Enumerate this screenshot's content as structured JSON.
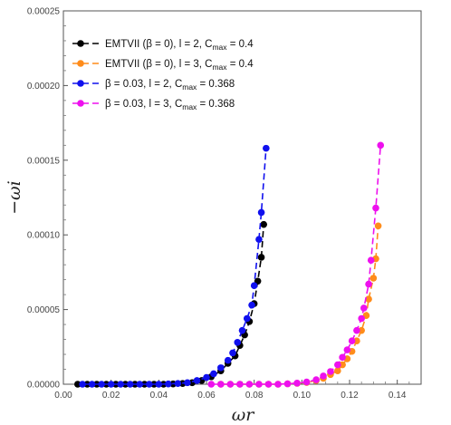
{
  "chart_data": {
    "type": "line",
    "xlabel": "ωr",
    "ylabel": "−ωi",
    "xlim": [
      0.0,
      0.15
    ],
    "ylim": [
      0.0,
      0.00025
    ],
    "x_ticks": [
      "0.00",
      "0.02",
      "0.04",
      "0.06",
      "0.08",
      "0.10",
      "0.12",
      "0.14"
    ],
    "y_ticks": [
      "0.00000",
      "0.00005",
      "0.00010",
      "0.00015",
      "0.00020",
      "0.00025"
    ],
    "grid": false,
    "legend_placement": "top-left",
    "series": [
      {
        "name": "EMTVII (β = 0), l = 2, Cmax = 0.4",
        "legend_text": {
          "main": "EMTVII (β = 0), l = 2, C",
          "sub": "max",
          "tail": " = 0.4"
        },
        "color": "#000000",
        "x": [
          0.006,
          0.01,
          0.014,
          0.018,
          0.022,
          0.026,
          0.03,
          0.034,
          0.038,
          0.042,
          0.046,
          0.05,
          0.054,
          0.058,
          0.062,
          0.066,
          0.069,
          0.072,
          0.074,
          0.076,
          0.078,
          0.08,
          0.0815,
          0.083,
          0.084
        ],
        "y": [
          0.0,
          0.0,
          0.0,
          0.0,
          0.0,
          0.0,
          0.0,
          0.0,
          0.0,
          0.0,
          2e-07,
          5e-07,
          1e-06,
          2.5e-06,
          5e-06,
          9e-06,
          1.4e-05,
          1.9e-05,
          2.6e-05,
          3.3e-05,
          4.2e-05,
          5.4e-05,
          6.9e-05,
          8.5e-05,
          0.000107
        ]
      },
      {
        "name": "EMTVII (β = 0), l = 3, Cmax = 0.4",
        "legend_text": {
          "main": "EMTVII (β = 0), l = 3, C",
          "sub": "max",
          "tail": " = 0.4"
        },
        "color": "#ff8c1a",
        "x": [
          0.066,
          0.07,
          0.074,
          0.078,
          0.082,
          0.086,
          0.09,
          0.094,
          0.098,
          0.102,
          0.106,
          0.109,
          0.112,
          0.115,
          0.117,
          0.119,
          0.121,
          0.123,
          0.125,
          0.127,
          0.128,
          0.13,
          0.131,
          0.132
        ],
        "y": [
          0.0,
          0.0,
          0.0,
          0.0,
          0.0,
          0.0,
          0.0,
          3e-07,
          6e-07,
          1.2e-06,
          2.5e-06,
          4e-06,
          6.5e-06,
          9e-06,
          1.3e-05,
          1.7e-05,
          2.2e-05,
          2.9e-05,
          3.6e-05,
          4.6e-05,
          5.7e-05,
          7.1e-05,
          8.4e-05,
          0.000106
        ]
      },
      {
        "name": "β = 0.03, l = 2, Cmax = 0.368",
        "legend_text": {
          "main": "β = 0.03, l = 2, C",
          "sub": "max",
          "tail": " = 0.368"
        },
        "color": "#1010ee",
        "x": [
          0.008,
          0.012,
          0.016,
          0.02,
          0.024,
          0.028,
          0.032,
          0.036,
          0.04,
          0.044,
          0.048,
          0.052,
          0.056,
          0.06,
          0.063,
          0.066,
          0.069,
          0.071,
          0.073,
          0.075,
          0.077,
          0.079,
          0.08,
          0.082,
          0.083,
          0.085
        ],
        "y": [
          0.0,
          0.0,
          0.0,
          0.0,
          0.0,
          0.0,
          0.0,
          0.0,
          0.0,
          2e-07,
          5e-07,
          1e-06,
          2.5e-06,
          4.5e-06,
          7e-06,
          1.1e-05,
          1.6e-05,
          2.1e-05,
          2.8e-05,
          3.6e-05,
          4.4e-05,
          5.3e-05,
          6.6e-05,
          9.7e-05,
          0.000115,
          0.000158
        ]
      },
      {
        "name": "β = 0.03, l = 3, Cmax = 0.368",
        "legend_text": {
          "main": "β = 0.03, l = 3, C",
          "sub": "max",
          "tail": " = 0.368"
        },
        "color": "#ee10ee",
        "x": [
          0.062,
          0.066,
          0.07,
          0.074,
          0.078,
          0.082,
          0.086,
          0.09,
          0.094,
          0.098,
          0.102,
          0.106,
          0.109,
          0.112,
          0.115,
          0.117,
          0.119,
          0.121,
          0.123,
          0.125,
          0.126,
          0.128,
          0.129,
          0.131,
          0.133
        ],
        "y": [
          0.0,
          0.0,
          0.0,
          0.0,
          0.0,
          0.0,
          0.0,
          0.0,
          3e-07,
          7e-07,
          1.5e-06,
          3e-06,
          5.5e-06,
          8.5e-06,
          1.3e-05,
          1.8e-05,
          2.3e-05,
          2.9e-05,
          3.6e-05,
          4.4e-05,
          5.1e-05,
          6.7e-05,
          8.3e-05,
          0.000118,
          0.00016
        ]
      }
    ]
  }
}
